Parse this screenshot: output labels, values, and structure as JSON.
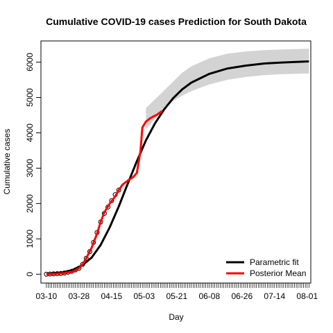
{
  "chart_data": {
    "type": "line",
    "title": "Cumulative COVID-19 cases Prediction for South Dakota",
    "xlabel": "Day",
    "ylabel": "Cumulative cases",
    "x_tick_labels": [
      "03-10",
      "03-28",
      "04-15",
      "05-03",
      "05-21",
      "06-08",
      "06-26",
      "07-14",
      "08-01"
    ],
    "y_ticks": [
      0,
      1000,
      2000,
      3000,
      4000,
      5000,
      6000
    ],
    "ylim": [
      -250,
      6600
    ],
    "xlim_days": [
      -3,
      146
    ],
    "legend_position": "bottom-right",
    "colors": {
      "parametric": "#000000",
      "posterior": "#ff0000",
      "band": "#d3d3d3",
      "observed": "#000000"
    },
    "series": [
      {
        "name": "Parametric fit",
        "x_days": [
          0,
          10,
          15,
          20,
          25,
          30,
          35,
          40,
          45,
          50,
          55,
          60,
          65,
          70,
          75,
          80,
          90,
          100,
          110,
          120,
          130,
          145
        ],
        "values": [
          5,
          60,
          130,
          260,
          470,
          830,
          1330,
          1920,
          2570,
          3200,
          3790,
          4270,
          4660,
          4980,
          5230,
          5420,
          5670,
          5820,
          5900,
          5960,
          5990,
          6020
        ]
      },
      {
        "name": "Posterior Mean",
        "x_days": [
          0,
          5,
          10,
          15,
          18,
          20,
          22,
          25,
          28,
          30,
          32,
          35,
          38,
          40,
          42,
          45,
          48,
          50,
          52,
          53,
          55,
          57,
          59,
          61,
          64
        ],
        "values": [
          0,
          10,
          30,
          80,
          170,
          280,
          450,
          750,
          1150,
          1480,
          1750,
          2000,
          2200,
          2380,
          2530,
          2650,
          2750,
          2870,
          3500,
          4150,
          4320,
          4400,
          4460,
          4510,
          4620
        ]
      }
    ],
    "band": {
      "x_days": [
        55,
        60,
        65,
        70,
        75,
        80,
        90,
        100,
        110,
        120,
        130,
        145
      ],
      "lower": [
        4100,
        4400,
        4700,
        4900,
        5050,
        5180,
        5370,
        5500,
        5580,
        5630,
        5660,
        5680
      ],
      "upper": [
        4700,
        4950,
        5200,
        5450,
        5700,
        5880,
        6110,
        6240,
        6300,
        6340,
        6360,
        6380
      ]
    },
    "observed": {
      "x_days": [
        0,
        2,
        4,
        6,
        8,
        10,
        12,
        14,
        16,
        18,
        20,
        22,
        24,
        26,
        28,
        30,
        32,
        34,
        36,
        38,
        40
      ],
      "values": [
        0,
        5,
        10,
        15,
        20,
        35,
        55,
        80,
        120,
        170,
        280,
        450,
        640,
        900,
        1180,
        1480,
        1720,
        1900,
        2080,
        2250,
        2380
      ]
    }
  }
}
